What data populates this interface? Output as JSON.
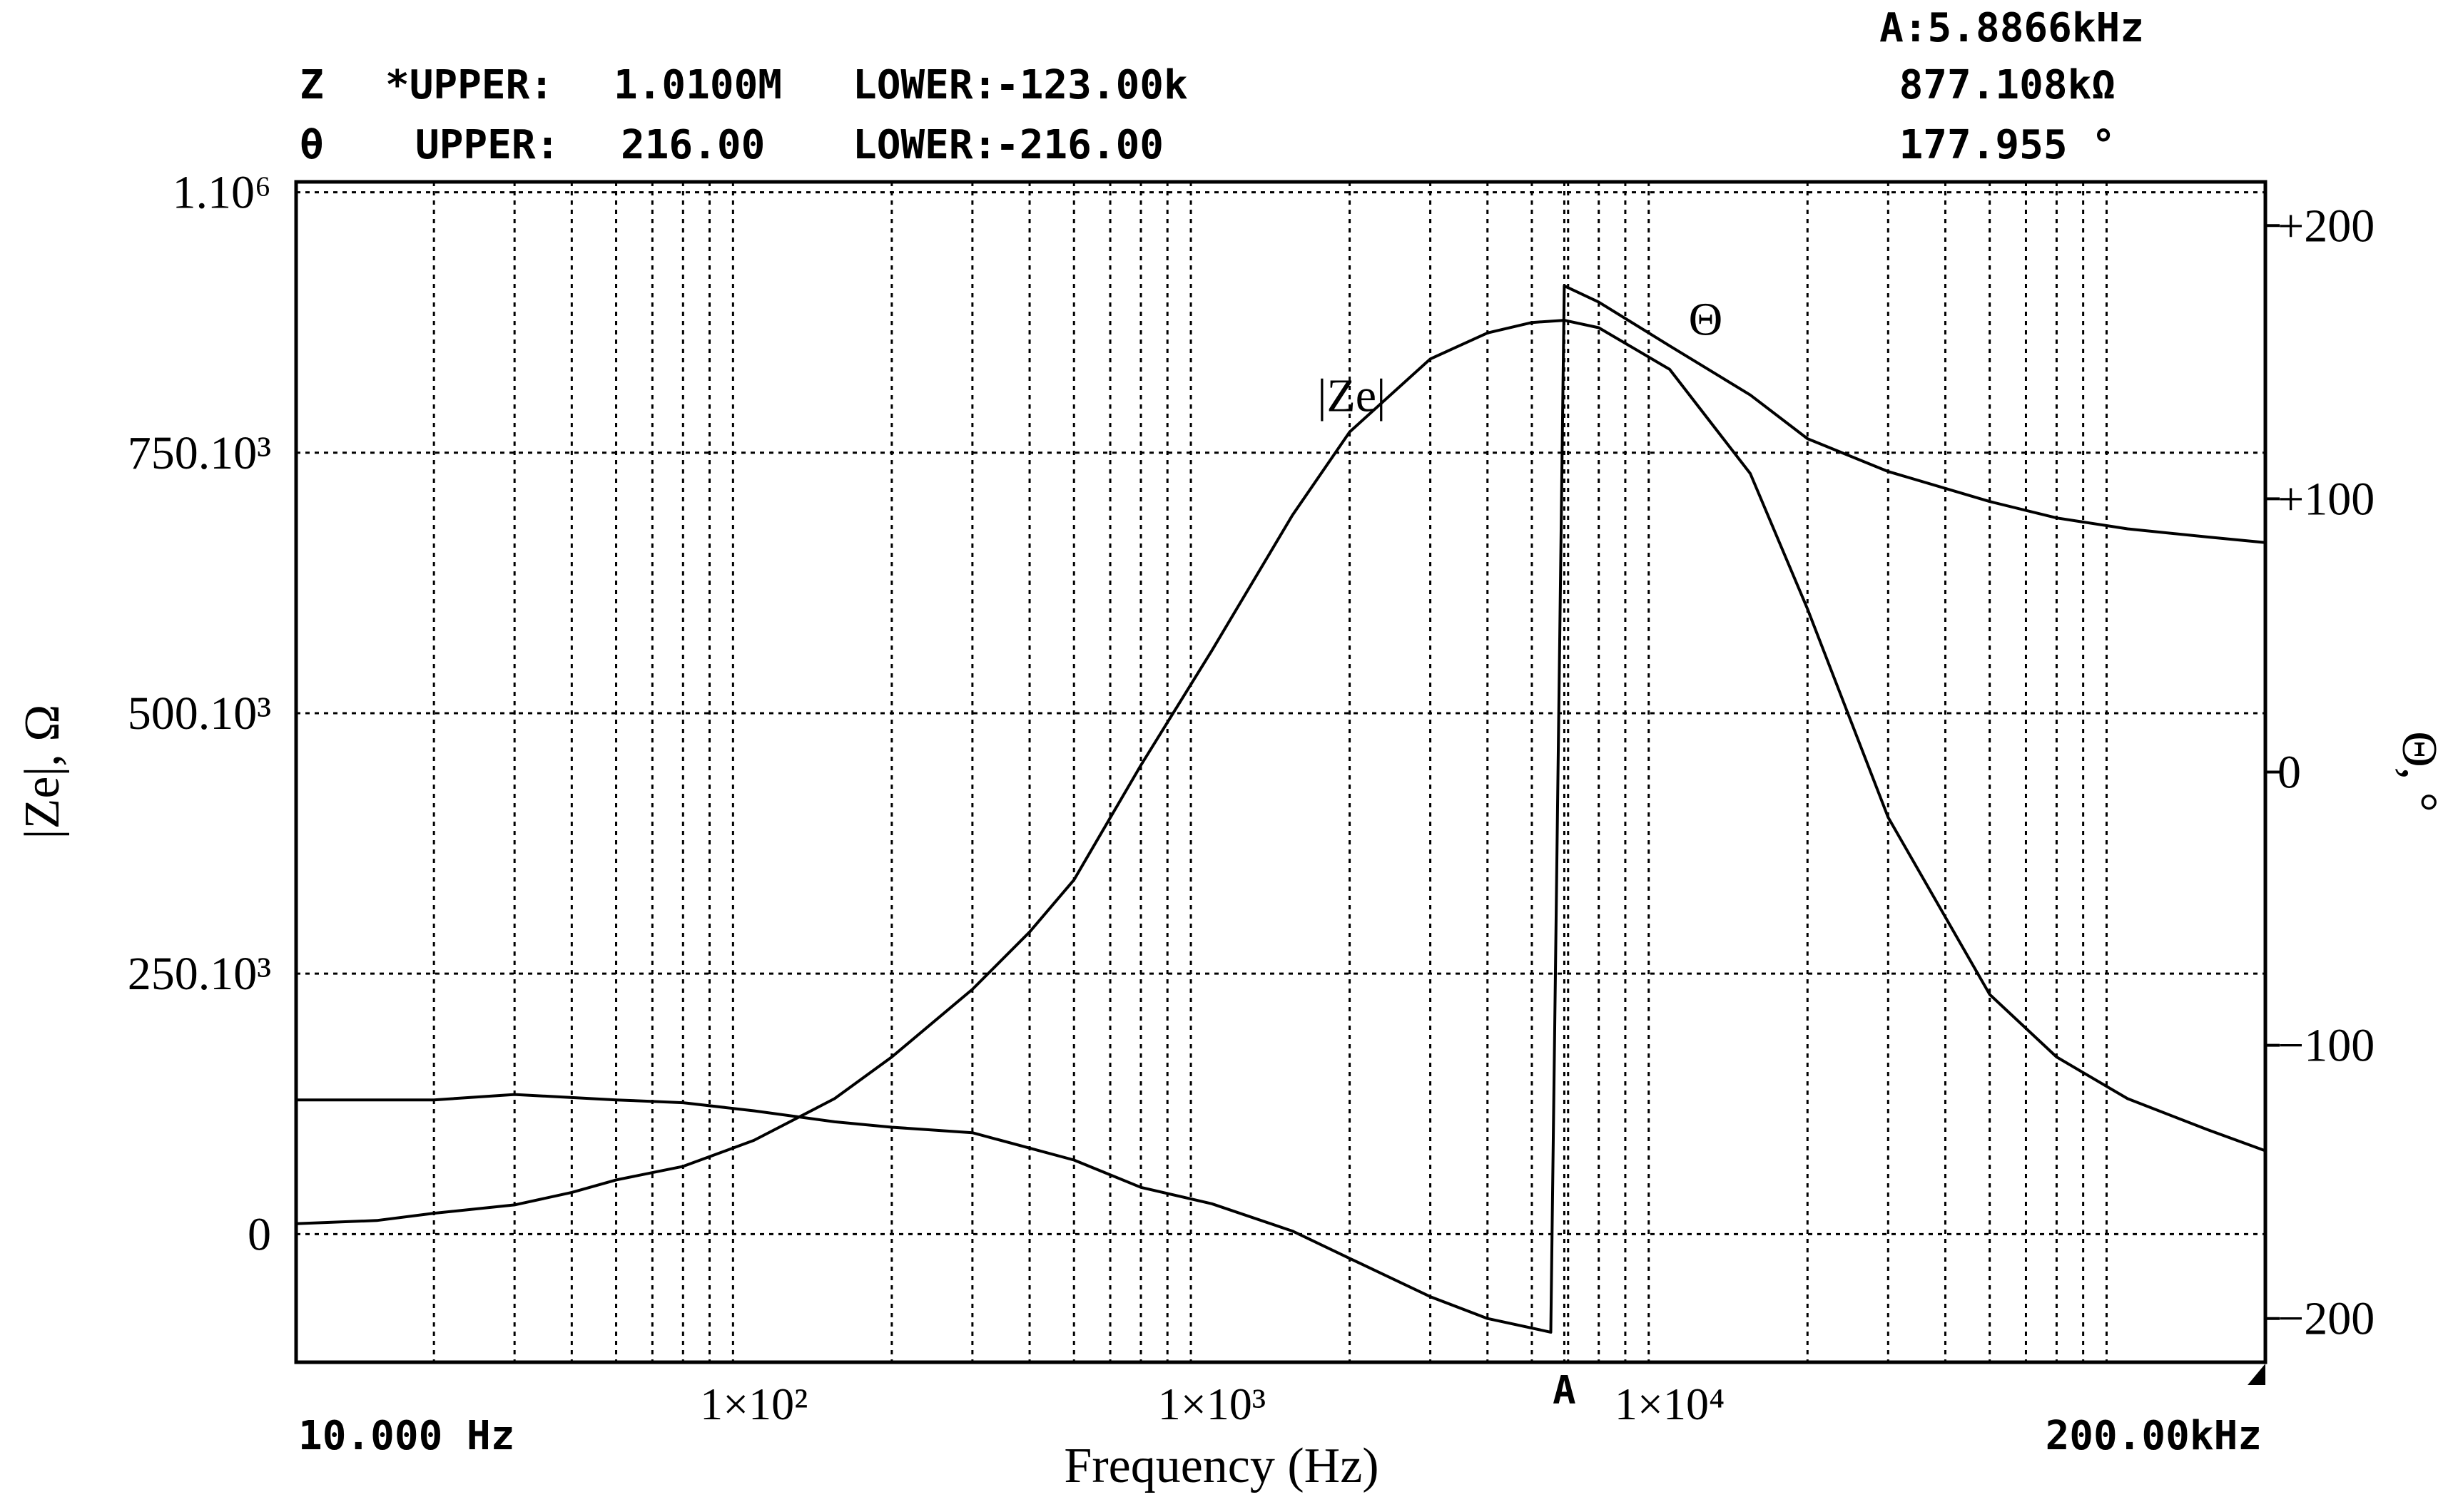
{
  "header": {
    "z_param": "Z",
    "z_upper_label": "*UPPER:",
    "z_upper_value": "1.0100M",
    "z_lower_label": "LOWER:",
    "z_lower_value": "-123.00k",
    "theta_param": "θ",
    "theta_upper_label": "UPPER:",
    "theta_upper_value": "216.00",
    "theta_lower_label": "LOWER:",
    "theta_lower_value": "-216.00"
  },
  "marker": {
    "label": "A",
    "frequency_readout": "A:5.8866kHz",
    "impedance_readout": "877.108kΩ",
    "phase_readout": "177.955 °",
    "frequency_hz": 5886.6
  },
  "chart_data": {
    "type": "line",
    "title": "",
    "xlabel": "Frequency (Hz)",
    "ylabel": "|Ze|, Ω",
    "y2label": "Θ, °",
    "x_scale": "log",
    "xlim": [
      10,
      200000
    ],
    "ylim": [
      -123000,
      1010000
    ],
    "y2lim": [
      -216,
      216
    ],
    "grid": true,
    "x_start_label": "10.000 Hz",
    "x_end_label": "200.00kHz",
    "x_ticks": [
      {
        "value": 100,
        "label": "1×10²"
      },
      {
        "value": 1000,
        "label": "1×10³"
      },
      {
        "value": 10000,
        "label": "1×10⁴"
      }
    ],
    "y_ticks": [
      {
        "value": 1000000,
        "label": "1.10⁶"
      },
      {
        "value": 750000,
        "label": "750.10³"
      },
      {
        "value": 500000,
        "label": "500.10³"
      },
      {
        "value": 250000,
        "label": "250.10³"
      },
      {
        "value": 0,
        "label": "0"
      }
    ],
    "y2_ticks": [
      {
        "value": 200,
        "label": "+200"
      },
      {
        "value": 100,
        "label": "+100"
      },
      {
        "value": 0,
        "label": "0"
      },
      {
        "value": -100,
        "label": "−100"
      },
      {
        "value": -200,
        "label": "−200"
      }
    ],
    "series": [
      {
        "name": "|Ze|",
        "axis": "left",
        "points": [
          [
            10,
            10000
          ],
          [
            15,
            13000
          ],
          [
            20,
            20000
          ],
          [
            30,
            28000
          ],
          [
            40,
            40000
          ],
          [
            50,
            52000
          ],
          [
            70,
            65000
          ],
          [
            100,
            90000
          ],
          [
            150,
            130000
          ],
          [
            200,
            170000
          ],
          [
            300,
            235000
          ],
          [
            400,
            290000
          ],
          [
            500,
            340000
          ],
          [
            700,
            450000
          ],
          [
            1000,
            560000
          ],
          [
            1500,
            690000
          ],
          [
            2000,
            770000
          ],
          [
            3000,
            840000
          ],
          [
            4000,
            865000
          ],
          [
            5000,
            875000
          ],
          [
            5886.6,
            877108
          ],
          [
            7000,
            870000
          ],
          [
            10000,
            830000
          ],
          [
            15000,
            730000
          ],
          [
            20000,
            600000
          ],
          [
            30000,
            400000
          ],
          [
            50000,
            230000
          ],
          [
            70000,
            170000
          ],
          [
            100000,
            130000
          ],
          [
            150000,
            100000
          ],
          [
            200000,
            80000
          ]
        ]
      },
      {
        "name": "Θ",
        "axis": "right",
        "points": [
          [
            10,
            -120
          ],
          [
            20,
            -120
          ],
          [
            30,
            -118
          ],
          [
            50,
            -120
          ],
          [
            70,
            -121
          ],
          [
            100,
            -124
          ],
          [
            150,
            -128
          ],
          [
            200,
            -130
          ],
          [
            300,
            -132
          ],
          [
            500,
            -142
          ],
          [
            700,
            -152
          ],
          [
            1000,
            -158
          ],
          [
            1500,
            -168
          ],
          [
            2000,
            -178
          ],
          [
            3000,
            -192
          ],
          [
            4000,
            -200
          ],
          [
            5500,
            -205
          ],
          [
            5886.6,
            177.955
          ],
          [
            7000,
            172
          ],
          [
            10000,
            156
          ],
          [
            15000,
            138
          ],
          [
            20000,
            122
          ],
          [
            30000,
            110
          ],
          [
            50000,
            99
          ],
          [
            70000,
            93
          ],
          [
            100000,
            89
          ],
          [
            150000,
            86
          ],
          [
            200000,
            84
          ]
        ]
      }
    ],
    "annotations": [
      {
        "text": "|Ze|",
        "series": "|Ze|"
      },
      {
        "text": "Θ",
        "series": "Θ"
      }
    ]
  }
}
